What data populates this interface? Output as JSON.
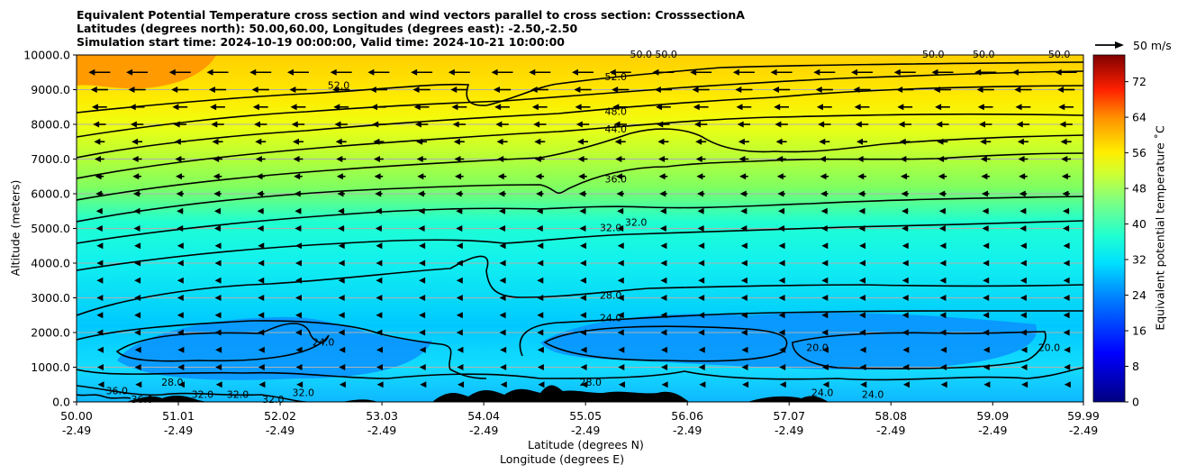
{
  "chart_data": {
    "type": "contour",
    "title_lines": [
      "Equivalent Potential Temperature cross section and wind vectors parallel to cross section: CrosssectionA",
      "Latitudes (degrees north): 50.00,60.00, Longitudes (degrees east): -2.50,-2.50",
      "Simulation start time: 2024-10-19 00:00:00, Valid time: 2024-10-21 10:00:00"
    ],
    "ylabel": "Altitude (meters)",
    "xlabel_lines": [
      "Latitude (degrees N)",
      "Longitude (degrees E)"
    ],
    "colorbar_label": "Equivalent potential temperature ˚C",
    "vector_key_label": "50 m/s",
    "ylim": [
      0,
      10000
    ],
    "yticks": [
      "0.0",
      "1000.0",
      "2000.0",
      "3000.0",
      "4000.0",
      "5000.0",
      "6000.0",
      "7000.0",
      "8000.0",
      "9000.0",
      "10000.0"
    ],
    "xticks_lat": [
      "50.00",
      "51.01",
      "52.02",
      "53.03",
      "54.04",
      "55.05",
      "56.06",
      "57.07",
      "58.08",
      "59.09",
      "59.99"
    ],
    "xticks_lon": [
      "-2.49",
      "-2.49",
      "-2.49",
      "-2.49",
      "-2.49",
      "-2.49",
      "-2.49",
      "-2.49",
      "-2.49",
      "-2.49",
      "-2.49"
    ],
    "colorbar_ticks": [
      "0",
      "8",
      "16",
      "24",
      "32",
      "40",
      "48",
      "56",
      "64",
      "72"
    ],
    "colorbar_range": [
      0,
      78
    ],
    "grid": "horizontal",
    "contour_labels": [
      {
        "text": "52.0",
        "lat": 52.6,
        "alt": 9100
      },
      {
        "text": "52.0",
        "lat": 55.35,
        "alt": 9350
      },
      {
        "text": "50.0",
        "lat": 55.6,
        "alt": 10000
      },
      {
        "text": "50.0",
        "lat": 55.85,
        "alt": 10000
      },
      {
        "text": "50.0",
        "lat": 58.5,
        "alt": 10000
      },
      {
        "text": "50.0",
        "lat": 59.0,
        "alt": 10000
      },
      {
        "text": "50.0",
        "lat": 59.75,
        "alt": 10000
      },
      {
        "text": "48.0",
        "lat": 55.35,
        "alt": 8350
      },
      {
        "text": "44.0",
        "lat": 55.35,
        "alt": 7850
      },
      {
        "text": "36.0",
        "lat": 55.35,
        "alt": 6400
      },
      {
        "text": "32.0",
        "lat": 55.3,
        "alt": 5000
      },
      {
        "text": "32.0",
        "lat": 55.55,
        "alt": 5150
      },
      {
        "text": "28.0",
        "lat": 55.3,
        "alt": 3050
      },
      {
        "text": "24.0",
        "lat": 55.3,
        "alt": 2400
      },
      {
        "text": "24.0",
        "lat": 52.45,
        "alt": 1700
      },
      {
        "text": "20.0",
        "lat": 57.35,
        "alt": 1550
      },
      {
        "text": "20.0",
        "lat": 59.65,
        "alt": 1550
      },
      {
        "text": "28.0",
        "lat": 55.1,
        "alt": 550
      },
      {
        "text": "28.0",
        "lat": 50.95,
        "alt": 550
      },
      {
        "text": "36.0",
        "lat": 50.4,
        "alt": 300
      },
      {
        "text": "36.0",
        "lat": 50.65,
        "alt": 50
      },
      {
        "text": "32.0",
        "lat": 51.25,
        "alt": 200
      },
      {
        "text": "32.0",
        "lat": 51.6,
        "alt": 200
      },
      {
        "text": "32.0",
        "lat": 51.95,
        "alt": 50
      },
      {
        "text": "32.0",
        "lat": 52.25,
        "alt": 250
      },
      {
        "text": "24.0",
        "lat": 57.4,
        "alt": 250
      },
      {
        "text": "24.0",
        "lat": 57.9,
        "alt": 200
      }
    ],
    "wind_vector_rows": [
      {
        "alt": 9500,
        "u": -10
      },
      {
        "alt": 9000,
        "u": -8
      },
      {
        "alt": 8500,
        "u": -7
      },
      {
        "alt": 8000,
        "u": -6
      },
      {
        "alt": 7500,
        "u": -5
      },
      {
        "alt": 7000,
        "u": -4.5
      },
      {
        "alt": 6500,
        "u": -4
      },
      {
        "alt": 6000,
        "u": -3.5
      },
      {
        "alt": 5500,
        "u": -3
      },
      {
        "alt": 5000,
        "u": -3
      },
      {
        "alt": 4500,
        "u": -2.5
      },
      {
        "alt": 4000,
        "u": -2.5
      },
      {
        "alt": 3500,
        "u": -2.5
      },
      {
        "alt": 3000,
        "u": -2.5
      },
      {
        "alt": 2500,
        "u": -2.5
      },
      {
        "alt": 2000,
        "u": -2.5
      },
      {
        "alt": 1500,
        "u": -2
      },
      {
        "alt": 1000,
        "u": -2
      },
      {
        "alt": 500,
        "u": -1.5
      }
    ]
  }
}
